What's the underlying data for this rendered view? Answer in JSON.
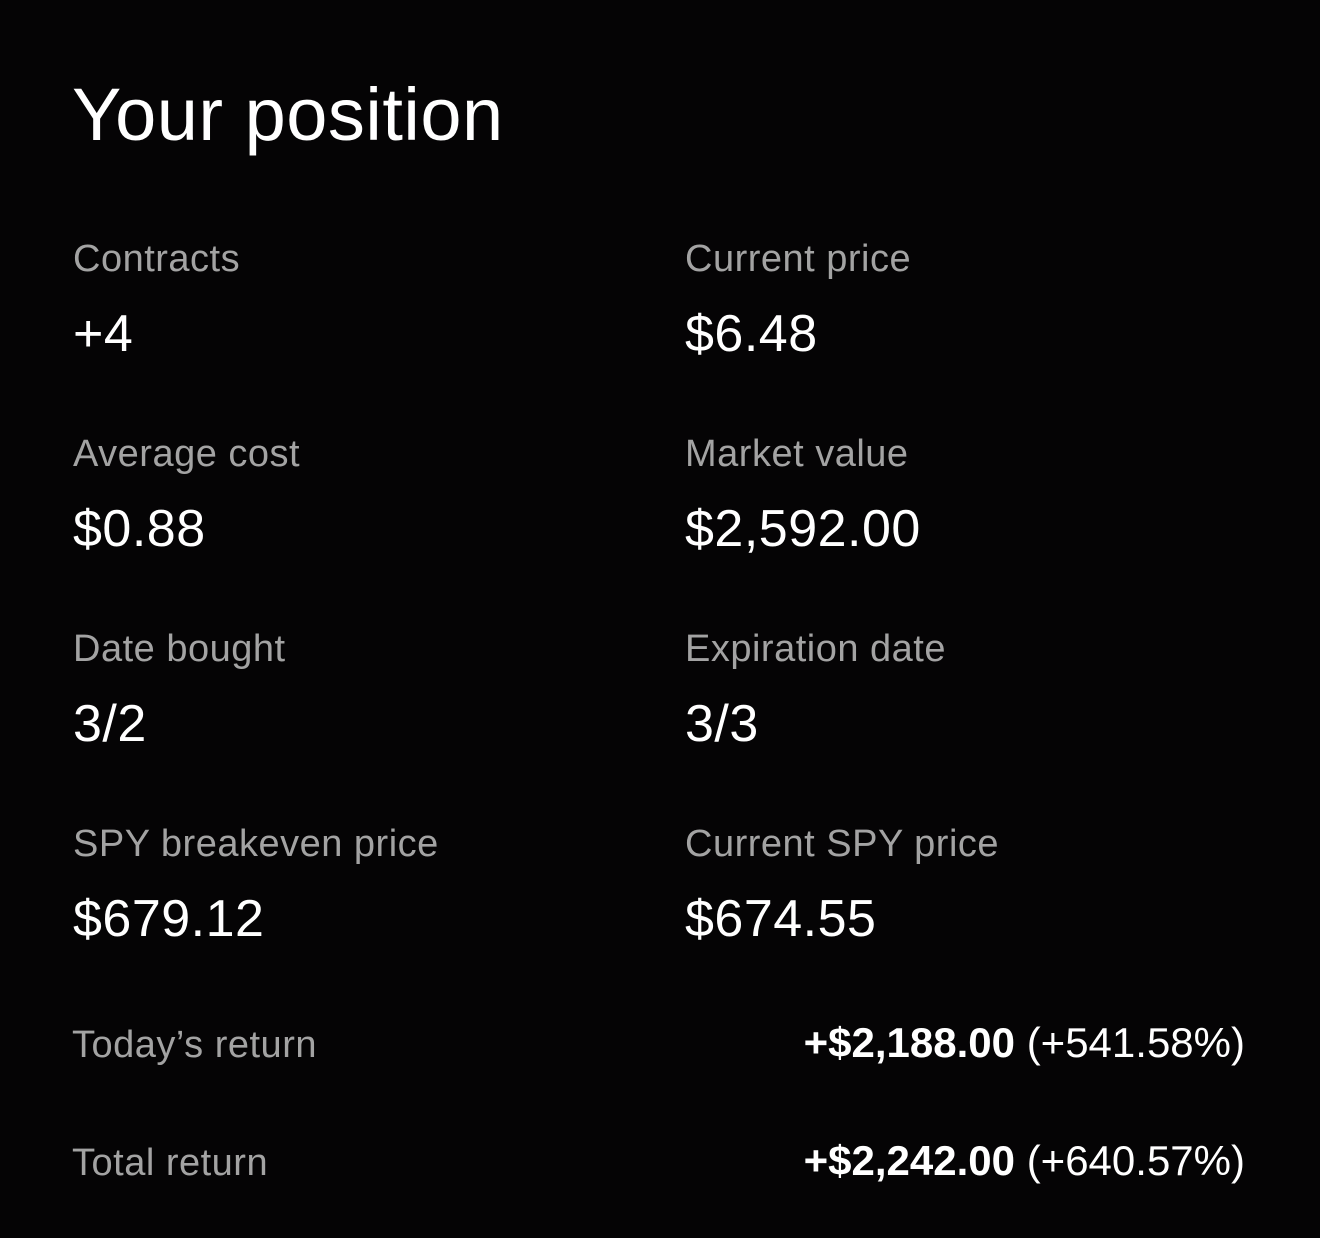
{
  "title": "Your position",
  "stats": [
    {
      "label": "Contracts",
      "value": "+4"
    },
    {
      "label": "Current price",
      "value": "$6.48"
    },
    {
      "label": "Average cost",
      "value": "$0.88"
    },
    {
      "label": "Market value",
      "value": "$2,592.00"
    },
    {
      "label": "Date bought",
      "value": "3/2"
    },
    {
      "label": "Expiration date",
      "value": "3/3"
    },
    {
      "label": "SPY breakeven price",
      "value": "$679.12"
    },
    {
      "label": "Current SPY price",
      "value": "$674.55"
    }
  ],
  "returns": {
    "today": {
      "label": "Today’s return",
      "amount": "+$2,188.00",
      "percent": "(+541.58%)"
    },
    "total": {
      "label": "Total return",
      "amount": "+$2,242.00",
      "percent": "(+640.57%)"
    }
  }
}
